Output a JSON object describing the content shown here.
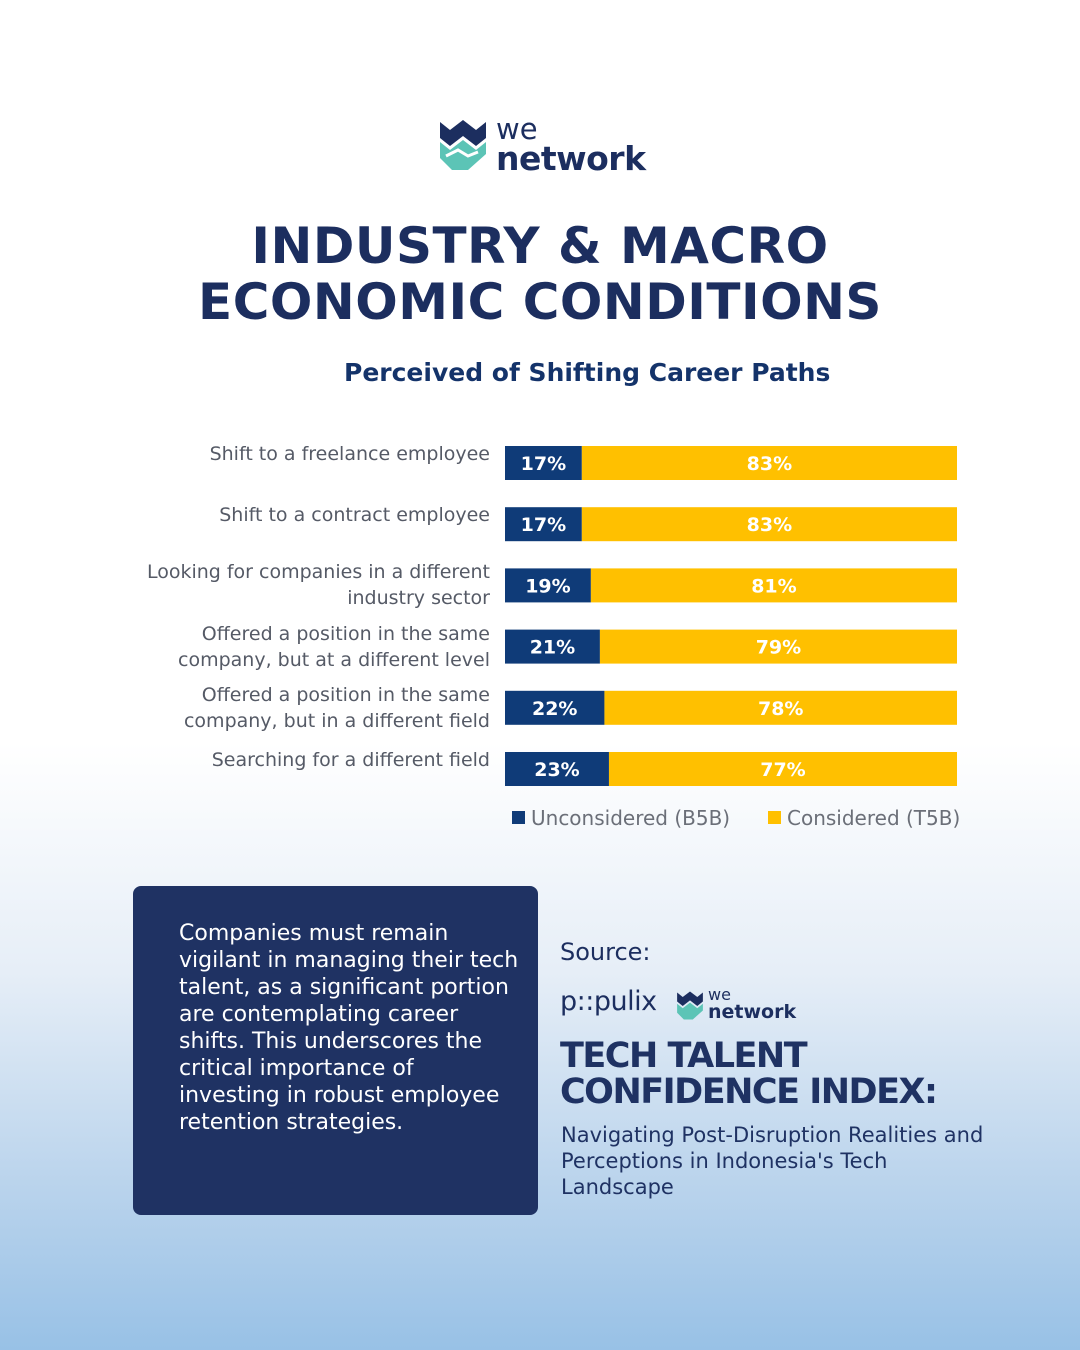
{
  "brand": {
    "logo_we": "we",
    "logo_network": "network",
    "logo_icon": "we-network-icon",
    "color": "#1c2e5f",
    "accent": "#5cc4b6"
  },
  "header": {
    "title_line1": "INDUSTRY & MACRO",
    "title_line2": "ECONOMIC CONDITIONS"
  },
  "chart_data": {
    "type": "bar",
    "orientation": "horizontal",
    "stacked": true,
    "percent": true,
    "title": "Perceived of Shifting Career Paths",
    "categories": [
      [
        "Shift to a freelance employee"
      ],
      [
        "Shift to a contract employee"
      ],
      [
        "Looking for companies in a different",
        "industry sector"
      ],
      [
        "Offered a position in the same",
        "company, but at a different level"
      ],
      [
        "Offered a position in the same",
        "company, but in a different field"
      ],
      [
        "Searching for a different field"
      ]
    ],
    "series": [
      {
        "name": "Unconsidered (B5B)",
        "color": "#0f3b78",
        "values": [
          17,
          17,
          19,
          21,
          22,
          23
        ]
      },
      {
        "name": "Considered (T5B)",
        "color": "#ffc000",
        "values": [
          83,
          83,
          81,
          79,
          78,
          77
        ]
      }
    ],
    "data_labels": [
      [
        "17%",
        "17%",
        "19%",
        "21%",
        "22%",
        "23%"
      ],
      [
        "83%",
        "83%",
        "81%",
        "79%",
        "78%",
        "77%"
      ]
    ],
    "xlim": [
      0,
      100
    ],
    "legend": "bottom"
  },
  "callout": {
    "text": "Companies must remain vigilant in managing their tech talent, as a significant portion are contemplating career shifts. This underscores the critical importance of investing in robust employee retention strategies.",
    "background": "#1f3263"
  },
  "source": {
    "label": "Source:",
    "partner": "p::pulix",
    "partner_logo_we": "we",
    "partner_logo_network": "network",
    "report_title_line1": "TECH TALENT",
    "report_title_line2": "CONFIDENCE INDEX:",
    "report_subtitle": "Navigating Post-Disruption Realities and Perceptions in Indonesia's Tech Landscape"
  }
}
